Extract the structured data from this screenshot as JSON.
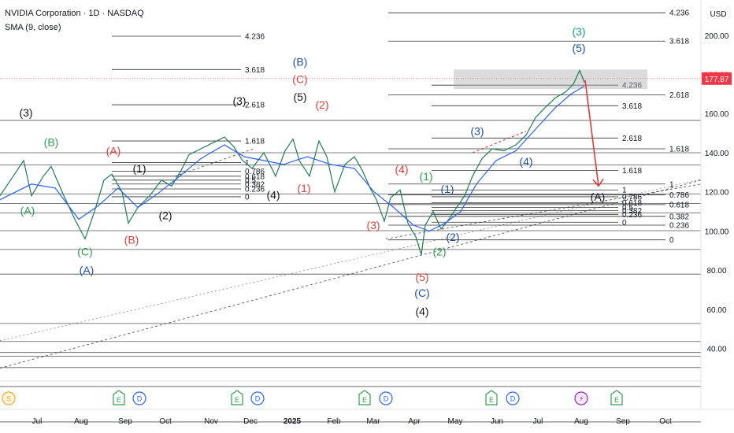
{
  "header": {
    "title": "NVIDIA Corporation · 1D · NASDAQ",
    "indicator": "SMA (9, close)"
  },
  "currency": "USD",
  "colors": {
    "black": "#131722",
    "green": "#2e9e4f",
    "red": "#e03b3b",
    "blue": "#1f4fa8",
    "teal": "#1a9a8a",
    "lightblue": "#2a6ed8",
    "sma": "#2962ff",
    "arrow": "#e03b3b"
  },
  "chart_data": {
    "type": "line",
    "ylim": [
      25,
      218
    ],
    "y_ticks": [
      40,
      60,
      80,
      100,
      120,
      140,
      160,
      180,
      200
    ],
    "y_tick_labels": [
      "40.00",
      "60.00",
      "80.00",
      "100.00",
      "120.00",
      "140.00",
      "160.00",
      "180.00",
      "200.00"
    ],
    "last_price": "177.87",
    "x_tick_labels": [
      "Jul",
      "Aug",
      "Sep",
      "Oct",
      "Nov",
      "Dec",
      "2025",
      "Feb",
      "Mar",
      "Apr",
      "May",
      "Jun",
      "Jul",
      "Aug",
      "Sep",
      "Oct"
    ],
    "x_tick_positions": [
      47,
      103,
      159,
      210,
      268,
      318,
      371,
      424,
      474,
      526,
      578,
      631,
      683,
      738,
      791,
      845
    ],
    "plot_x_range": [
      0,
      890
    ],
    "price_series": [
      [
        0,
        118
      ],
      [
        20,
        130
      ],
      [
        30,
        136
      ],
      [
        40,
        118
      ],
      [
        55,
        128
      ],
      [
        65,
        133
      ],
      [
        80,
        119
      ],
      [
        95,
        106
      ],
      [
        108,
        96
      ],
      [
        120,
        110
      ],
      [
        132,
        126
      ],
      [
        142,
        129
      ],
      [
        155,
        120
      ],
      [
        163,
        104
      ],
      [
        175,
        112
      ],
      [
        190,
        118
      ],
      [
        205,
        126
      ],
      [
        218,
        123
      ],
      [
        230,
        131
      ],
      [
        240,
        139
      ],
      [
        255,
        142
      ],
      [
        270,
        145
      ],
      [
        285,
        148
      ],
      [
        297,
        143
      ],
      [
        308,
        136
      ],
      [
        320,
        132
      ],
      [
        335,
        140
      ],
      [
        350,
        128
      ],
      [
        362,
        141
      ],
      [
        372,
        147
      ],
      [
        380,
        136
      ],
      [
        393,
        128
      ],
      [
        405,
        146
      ],
      [
        415,
        138
      ],
      [
        425,
        120
      ],
      [
        438,
        134
      ],
      [
        450,
        138
      ],
      [
        460,
        131
      ],
      [
        470,
        122
      ],
      [
        478,
        116
      ],
      [
        488,
        105
      ],
      [
        496,
        117
      ],
      [
        508,
        121
      ],
      [
        518,
        104
      ],
      [
        528,
        97
      ],
      [
        535,
        88
      ],
      [
        540,
        103
      ],
      [
        550,
        110
      ],
      [
        560,
        101
      ],
      [
        570,
        106
      ],
      [
        578,
        111
      ],
      [
        590,
        118
      ],
      [
        600,
        128
      ],
      [
        612,
        137
      ],
      [
        625,
        142
      ],
      [
        640,
        141
      ],
      [
        655,
        144
      ],
      [
        668,
        149
      ],
      [
        680,
        158
      ],
      [
        692,
        163
      ],
      [
        705,
        168
      ],
      [
        718,
        171
      ],
      [
        728,
        175
      ],
      [
        736,
        182
      ],
      [
        742,
        176
      ]
    ],
    "sma_series": [
      [
        0,
        116
      ],
      [
        40,
        124
      ],
      [
        70,
        122
      ],
      [
        100,
        106
      ],
      [
        125,
        113
      ],
      [
        150,
        122
      ],
      [
        175,
        112
      ],
      [
        200,
        119
      ],
      [
        225,
        127
      ],
      [
        255,
        137
      ],
      [
        285,
        144
      ],
      [
        310,
        138
      ],
      [
        335,
        136
      ],
      [
        360,
        134
      ],
      [
        390,
        138
      ],
      [
        420,
        134
      ],
      [
        450,
        132
      ],
      [
        475,
        120
      ],
      [
        500,
        112
      ],
      [
        525,
        103
      ],
      [
        545,
        100
      ],
      [
        565,
        104
      ],
      [
        585,
        110
      ],
      [
        605,
        124
      ],
      [
        630,
        136
      ],
      [
        655,
        141
      ],
      [
        680,
        152
      ],
      [
        705,
        163
      ],
      [
        725,
        170
      ],
      [
        742,
        174
      ]
    ],
    "horizontal_lines": [
      2.5,
      20.6,
      30.3,
      36.1,
      38.0,
      43.6,
      52.8,
      78.0,
      90.6,
      100.2,
      109.2,
      114.0,
      119.0,
      133.7,
      140.0,
      156.5,
      221.0
    ],
    "fib_sets": [
      {
        "x1": 142,
        "x2": 306,
        "levels": [
          {
            "label": "4.236",
            "price": 199.5
          },
          {
            "label": "3.618",
            "price": 182.5
          },
          {
            "label": "2.618",
            "price": 164.5
          },
          {
            "label": "1.618",
            "price": 146.0
          },
          {
            "label": "1",
            "price": 135.0
          },
          {
            "label": "0.786",
            "price": 130.5
          },
          {
            "label": "0.618",
            "price": 128.0
          },
          {
            "label": "0.5",
            "price": 126.0
          },
          {
            "label": "0.382",
            "price": 124.0
          },
          {
            "label": "0.236",
            "price": 121.5
          },
          {
            "label": "0",
            "price": 117.5
          }
        ]
      },
      {
        "x1": 493,
        "x2": 845,
        "levels": [
          {
            "label": "4.236",
            "price": 211.5
          },
          {
            "label": "3.618",
            "price": 197.0
          },
          {
            "label": "2.618",
            "price": 169.5
          },
          {
            "label": "1.618",
            "price": 142.0
          },
          {
            "label": "1",
            "price": 124.0
          },
          {
            "label": "0.786",
            "price": 118.5
          },
          {
            "label": "0.618",
            "price": 113.5
          },
          {
            "label": "0.382",
            "price": 107.5
          },
          {
            "label": "0.236",
            "price": 103.0
          },
          {
            "label": "0",
            "price": 95.5
          }
        ]
      },
      {
        "x1": 548,
        "x2": 785,
        "levels": [
          {
            "label": "4.236",
            "price": 174.5
          },
          {
            "label": "3.618",
            "price": 164.0
          },
          {
            "label": "2.618",
            "price": 147.5
          },
          {
            "label": "1.618",
            "price": 131.0
          },
          {
            "label": "1",
            "price": 121.0
          },
          {
            "label": "0.786",
            "price": 117.5
          },
          {
            "label": "0.618",
            "price": 114.5
          },
          {
            "label": "0.5",
            "price": 112.0
          },
          {
            "label": "0.382",
            "price": 110.5
          },
          {
            "label": "0.236",
            "price": 108.5
          },
          {
            "label": "0",
            "price": 104.5
          }
        ]
      }
    ],
    "wave_labels": [
      {
        "text": "(3)",
        "x": 33,
        "price": 160.5,
        "color": "black"
      },
      {
        "text": "(B)",
        "x": 65,
        "price": 145.5,
        "color": "green"
      },
      {
        "text": "(A)",
        "x": 35,
        "price": 110.5,
        "color": "green"
      },
      {
        "text": "(C)",
        "x": 108,
        "price": 89.5,
        "color": "green"
      },
      {
        "text": "(A)",
        "x": 110,
        "price": 80.0,
        "color": "blue"
      },
      {
        "text": "(A)",
        "x": 144,
        "price": 141.0,
        "color": "red"
      },
      {
        "text": "(1)",
        "x": 177,
        "price": 132.0,
        "color": "black"
      },
      {
        "text": "(2)",
        "x": 210,
        "price": 108.0,
        "color": "black"
      },
      {
        "text": "(B)",
        "x": 167,
        "price": 95.5,
        "color": "red"
      },
      {
        "text": "(3)",
        "x": 304,
        "price": 166.5,
        "color": "black"
      },
      {
        "text": "(4)",
        "x": 347,
        "price": 118.5,
        "color": "black"
      },
      {
        "text": "(B)",
        "x": 381,
        "price": 186.5,
        "color": "blue"
      },
      {
        "text": "(C)",
        "x": 381,
        "price": 177.5,
        "color": "red"
      },
      {
        "text": "(5)",
        "x": 381,
        "price": 168.5,
        "color": "black"
      },
      {
        "text": "(2)",
        "x": 409,
        "price": 164.5,
        "color": "red"
      },
      {
        "text": "(1)",
        "x": 386,
        "price": 122.0,
        "color": "red"
      },
      {
        "text": "(4)",
        "x": 510,
        "price": 131.5,
        "color": "red"
      },
      {
        "text": "(1)",
        "x": 541,
        "price": 128.0,
        "color": "green"
      },
      {
        "text": "(1)",
        "x": 568,
        "price": 121.5,
        "color": "blue"
      },
      {
        "text": "(3)",
        "x": 474,
        "price": 103.0,
        "color": "red"
      },
      {
        "text": "(2)",
        "x": 575,
        "price": 97.0,
        "color": "blue"
      },
      {
        "text": "(2)",
        "x": 558,
        "price": 89.5,
        "color": "green"
      },
      {
        "text": "(5)",
        "x": 536,
        "price": 76.5,
        "color": "red"
      },
      {
        "text": "(C)",
        "x": 536,
        "price": 68.5,
        "color": "blue"
      },
      {
        "text": "(4)",
        "x": 536,
        "price": 59.0,
        "color": "black"
      },
      {
        "text": "(3)",
        "x": 606,
        "price": 151.0,
        "color": "blue"
      },
      {
        "text": "(4)",
        "x": 668,
        "price": 135.5,
        "color": "blue"
      },
      {
        "text": "(3)",
        "x": 735,
        "price": 202.0,
        "color": "teal"
      },
      {
        "text": "(5)",
        "x": 735,
        "price": 193.5,
        "color": "blue"
      },
      {
        "text": "(A)",
        "x": 759,
        "price": 117.5,
        "color": "black"
      }
    ],
    "events": [
      {
        "symbol": "S",
        "x": 11,
        "kind": "split"
      },
      {
        "symbol": "E",
        "x": 151,
        "kind": "earnings"
      },
      {
        "symbol": "D",
        "x": 177,
        "kind": "dividend"
      },
      {
        "symbol": "E",
        "x": 301,
        "kind": "earnings"
      },
      {
        "symbol": "D",
        "x": 327,
        "kind": "dividend"
      },
      {
        "symbol": "E",
        "x": 463,
        "kind": "earnings"
      },
      {
        "symbol": "D",
        "x": 490,
        "kind": "dividend"
      },
      {
        "symbol": "E",
        "x": 624,
        "kind": "earnings"
      },
      {
        "symbol": "D",
        "x": 651,
        "kind": "dividend"
      },
      {
        "symbol": "⚡",
        "x": 738,
        "kind": "news"
      },
      {
        "symbol": "E",
        "x": 783,
        "kind": "earnings"
      }
    ],
    "target_zone": {
      "y1": 172.5,
      "y2": 182.5
    },
    "projection_arrow": {
      "from": [
        743,
        177
      ],
      "to": [
        760,
        123
      ]
    },
    "grid": false
  }
}
